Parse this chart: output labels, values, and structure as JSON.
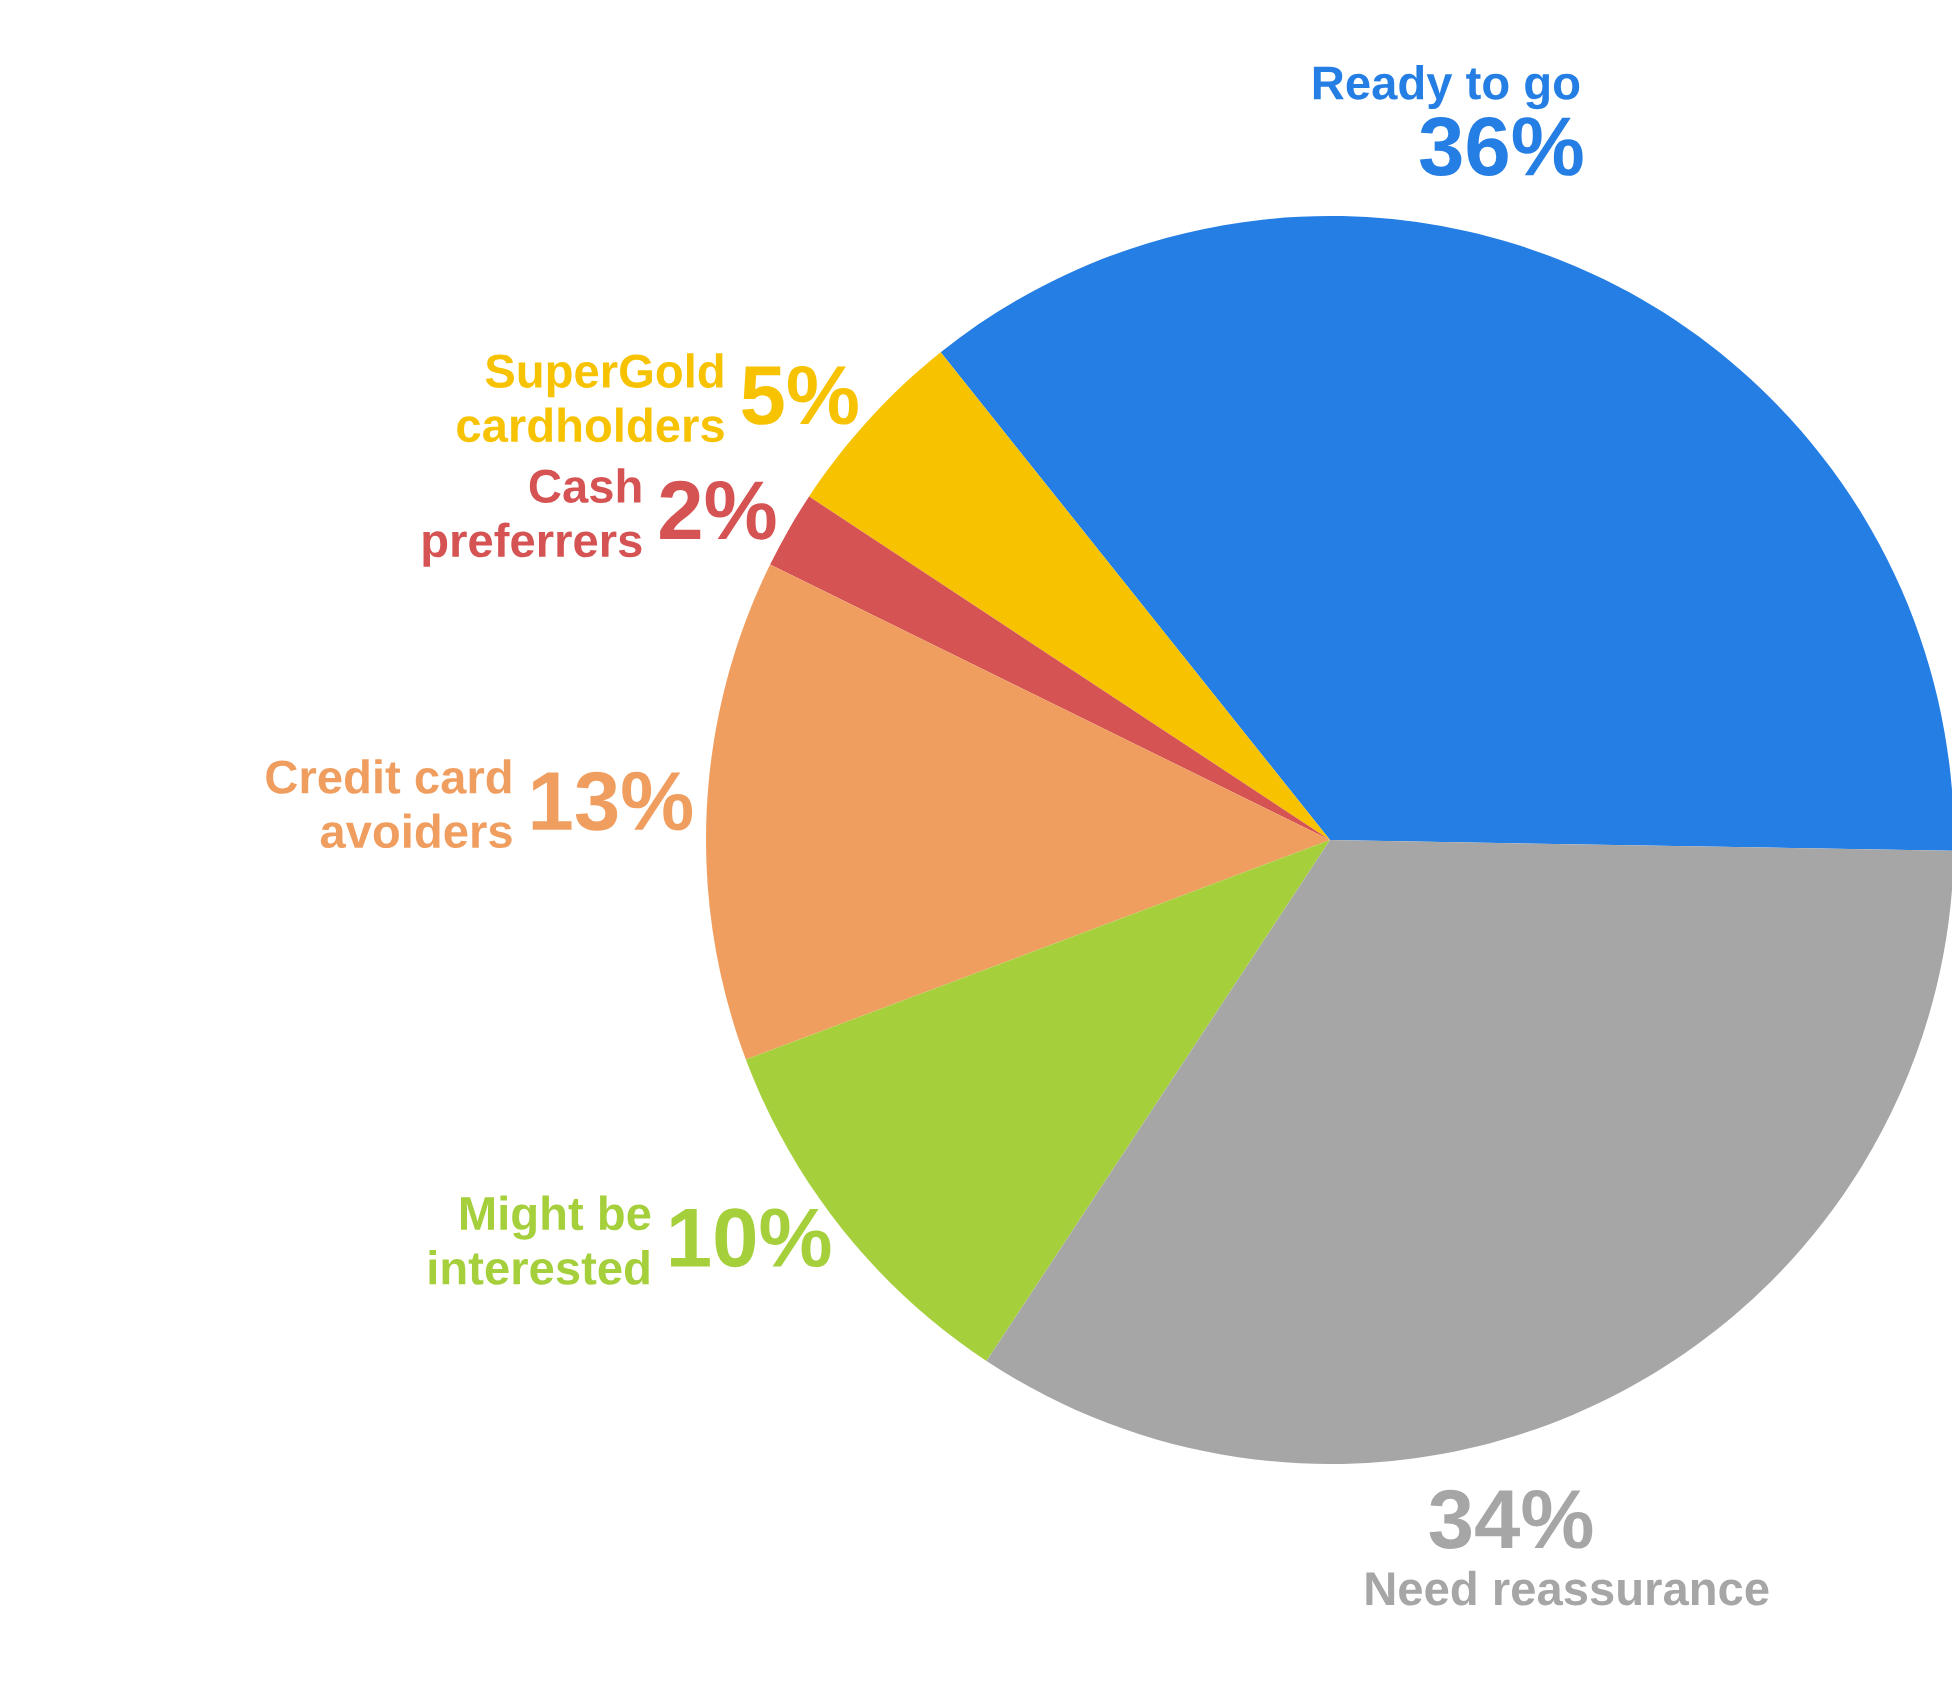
{
  "chart_data": {
    "type": "pie",
    "categories": [
      "Ready to go",
      "SuperGold cardholders",
      "Cash preferrers",
      "Credit card avoiders",
      "Might be interested",
      "Need reassurance"
    ],
    "values": [
      36,
      5,
      2,
      13,
      10,
      34
    ],
    "value_labels": [
      "36%",
      "5%",
      "2%",
      "13%",
      "10%",
      "34%"
    ],
    "colors": [
      "#247ee3",
      "#f7c200",
      "#d55352",
      "#f09e5f",
      "#a5cf3b",
      "#a6a6a6"
    ],
    "legend": false
  }
}
